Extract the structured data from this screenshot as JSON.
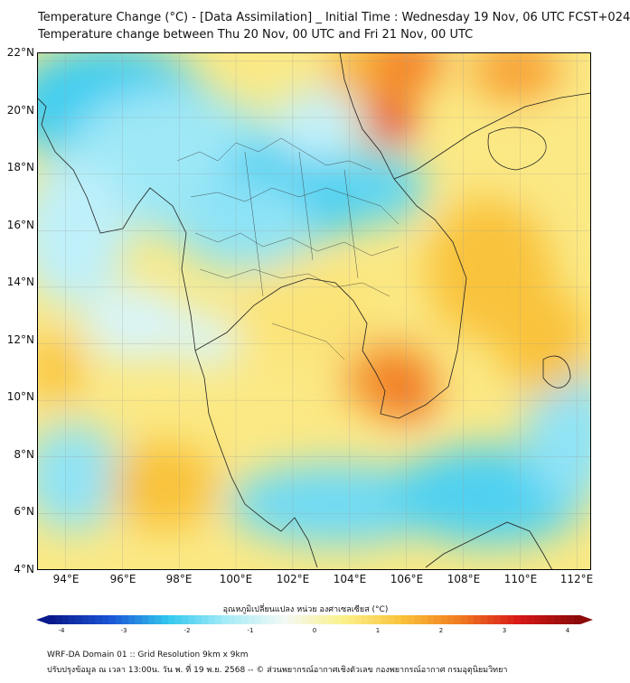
{
  "title": {
    "line1": "Temperature Change (°C) - [Data Assimilation] _ Initial Time : Wednesday 19 Nov, 06 UTC FCST+024",
    "line2": "Temperature change between Thu 20 Nov, 00 UTC and Fri 21 Nov, 00 UTC"
  },
  "axes": {
    "lat_labels": [
      "22°N",
      "20°N",
      "18°N",
      "16°N",
      "14°N",
      "12°N",
      "10°N",
      "8°N",
      "6°N",
      "4°N"
    ],
    "lon_labels": [
      "94°E",
      "96°E",
      "98°E",
      "100°E",
      "102°E",
      "104°E",
      "106°E",
      "108°E",
      "110°E",
      "112°E"
    ],
    "lat_range": [
      4,
      22.3
    ],
    "lon_range": [
      93,
      112.5
    ]
  },
  "colorbar": {
    "label": "อุณหภูมิเปลี่ยนแปลง หน่วย องศาเซลเซียส (°C)",
    "range": [
      -4,
      4
    ],
    "ticks": [
      "-4",
      "-3",
      "-2",
      "-1",
      "0",
      "1",
      "2",
      "3",
      "4"
    ],
    "colors": {
      "cold_extreme": "#0a1a8c",
      "cold_strong": "#1b55d6",
      "cool": "#33c8ee",
      "cool_light": "#a8ecf8",
      "neutral": "#f4f9f4",
      "warm_light": "#fbf18a",
      "warm": "#f9c23a",
      "hot": "#f07a20",
      "hot_strong": "#d81818",
      "hot_extreme": "#8c0a0a"
    }
  },
  "footer": {
    "line1": "WRF-DA Domain 01 :: Grid Resolution 9km x 9km",
    "line2": "ปรับปรุงข้อมูล ณ เวลา 13:00น. วัน พ. ที่ 19 พ.ย. 2568 -- © ส่วนพยากรณ์อากาศเชิงตัวเลข กองพยากรณ์อากาศ กรมอุตุนิยมวิทยา"
  }
}
